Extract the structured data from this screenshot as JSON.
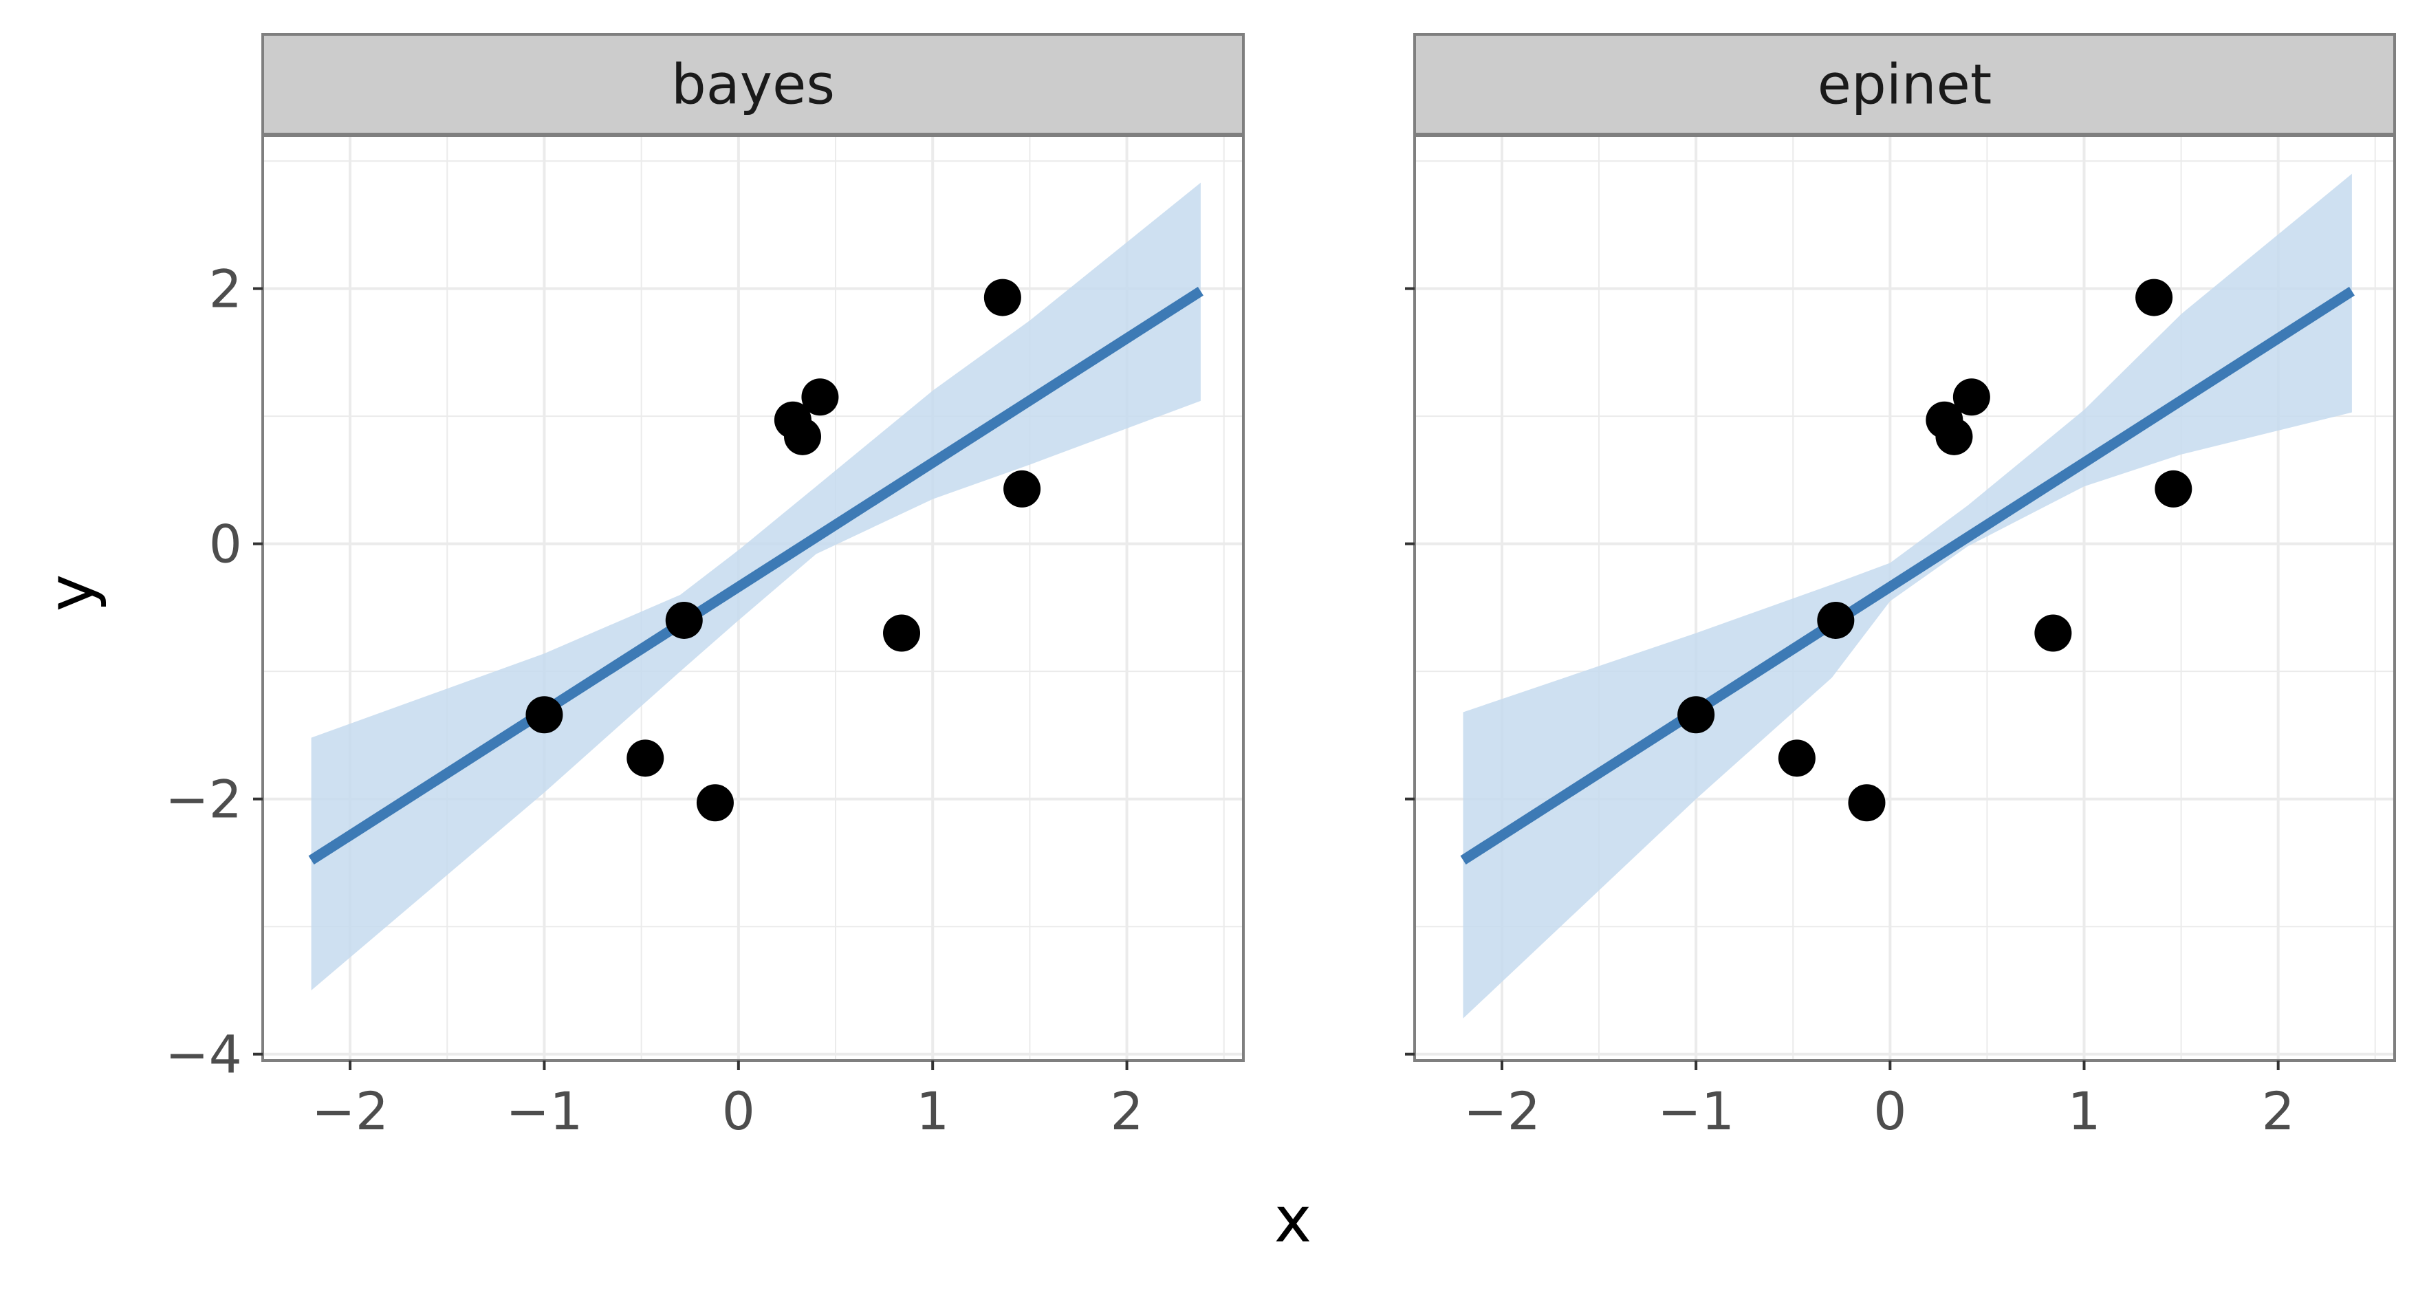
{
  "chart_data": {
    "type": "scatter",
    "xlabel": "x",
    "ylabel": "y",
    "xlim": [
      -2.45,
      2.6
    ],
    "ylim": [
      -4.05,
      3.2
    ],
    "x_ticks": [
      -2,
      -1,
      0,
      1,
      2
    ],
    "y_ticks": [
      -4,
      -2,
      0,
      2
    ],
    "x_tick_labels": [
      "−2",
      "−1",
      "0",
      "1",
      "2"
    ],
    "y_tick_labels": [
      "−4",
      "−2",
      "0",
      "2"
    ],
    "grid": true,
    "colors": {
      "line": "#3d7ab5",
      "band": "#c6dbef",
      "points": "#000000",
      "strip_fill": "#cccccc",
      "panel_border": "#7f7f7f",
      "grid": "#ebebeb"
    },
    "points": {
      "x": [
        -1.0,
        -0.48,
        -0.28,
        -0.12,
        0.28,
        0.33,
        0.42,
        0.84,
        1.36,
        1.46
      ],
      "y": [
        -1.34,
        -1.68,
        -0.6,
        -2.03,
        0.97,
        0.84,
        1.15,
        -0.7,
        1.93,
        0.43
      ]
    },
    "panels": [
      {
        "title": "bayes",
        "line": {
          "x": [
            -2.2,
            2.38
          ],
          "y": [
            -2.48,
            1.98
          ]
        },
        "band": {
          "x": [
            -2.2,
            -1.0,
            -0.3,
            0.0,
            0.4,
            1.0,
            1.5,
            2.38
          ],
          "lower": [
            -3.5,
            -1.95,
            -1.0,
            -0.6,
            -0.08,
            0.35,
            0.62,
            1.12
          ],
          "upper": [
            -1.52,
            -0.86,
            -0.4,
            -0.05,
            0.45,
            1.2,
            1.75,
            2.83
          ]
        }
      },
      {
        "title": "epinet",
        "line": {
          "x": [
            -2.2,
            2.38
          ],
          "y": [
            -2.48,
            1.98
          ]
        },
        "band": {
          "x": [
            -2.2,
            -1.0,
            -0.3,
            0.0,
            0.4,
            1.0,
            1.5,
            2.38
          ],
          "lower": [
            -3.72,
            -2.0,
            -1.05,
            -0.45,
            -0.02,
            0.45,
            0.7,
            1.03
          ],
          "upper": [
            -1.32,
            -0.7,
            -0.32,
            -0.15,
            0.3,
            1.05,
            1.8,
            2.9
          ]
        }
      }
    ]
  }
}
